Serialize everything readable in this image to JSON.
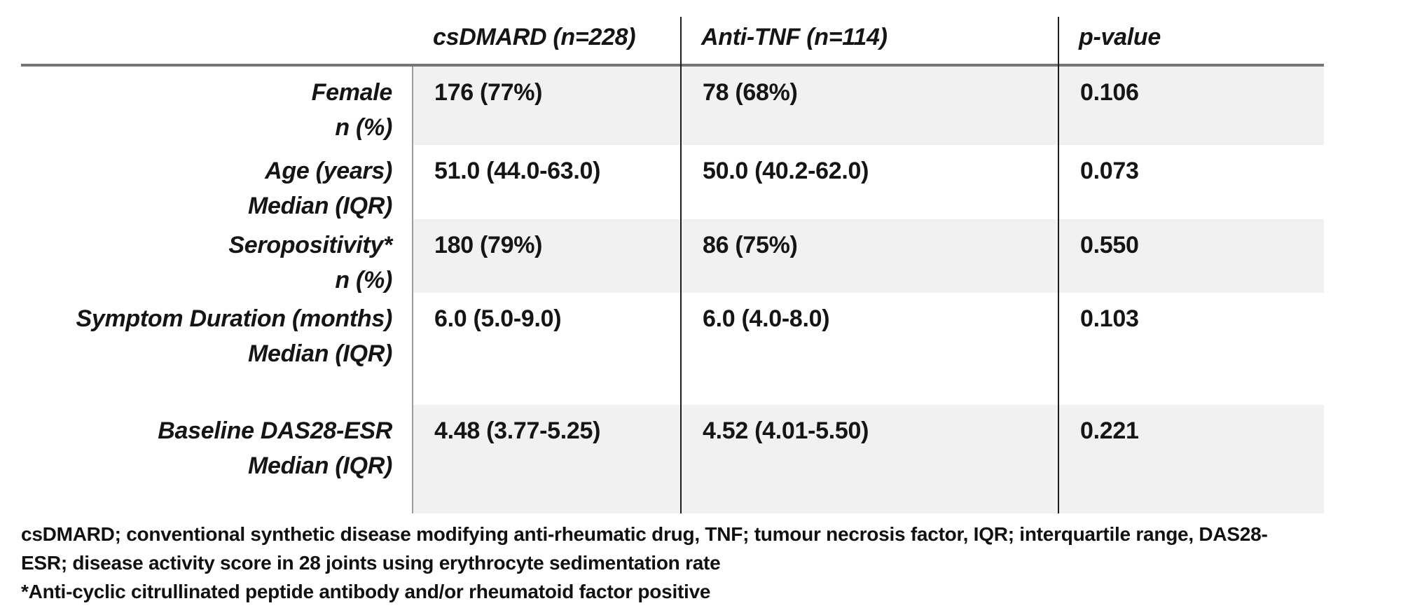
{
  "colors": {
    "row_shade": "#f1f1f1",
    "header_rule": "#757575",
    "divider_light": "#9b9b9b",
    "divider_dark": "#1c1c1c",
    "text": "#151515",
    "background": "#ffffff"
  },
  "chart_data": {
    "type": "table",
    "columns": [
      "",
      "csDMARD  (n=228)",
      "Anti-TNF (n=114)",
      "p-value"
    ],
    "rows": [
      [
        "Female n (%)",
        "176 (77%)",
        "78 (68%)",
        "0.106"
      ],
      [
        "Age (years) Median (IQR)",
        "51.0 (44.0-63.0)",
        "50.0 (40.2-62.0)",
        "0.073"
      ],
      [
        "Seropositivity* n (%)",
        "180 (79%)",
        "86 (75%)",
        "0.550"
      ],
      [
        "Symptom Duration (months) Median (IQR)",
        "6.0 (5.0-9.0)",
        "6.0 (4.0-8.0)",
        "0.103"
      ],
      [
        "Baseline DAS28-ESR Median (IQR)",
        "4.48 (3.77-5.25)",
        "4.52 (4.01-5.50)",
        "0.221"
      ]
    ]
  },
  "table": {
    "header": {
      "col1": "",
      "col2": "csDMARD  (n=228)",
      "col3": "Anti-TNF (n=114)",
      "col4": "p-value"
    },
    "rows": [
      {
        "label1": "Female",
        "label2": "n (%)",
        "csdmard": "176 (77%)",
        "antitnf": "78 (68%)",
        "pvalue": "0.106"
      },
      {
        "label1": "Age (years)",
        "label2": "Median (IQR)",
        "csdmard": "51.0 (44.0-63.0)",
        "antitnf": "50.0 (40.2-62.0)",
        "pvalue": "0.073"
      },
      {
        "label1": "Seropositivity*",
        "label2": "n (%)",
        "csdmard": "180 (79%)",
        "antitnf": "86 (75%)",
        "pvalue": "0.550"
      },
      {
        "label1": "Symptom Duration (months)",
        "label2": "Median (IQR)",
        "csdmard": "6.0 (5.0-9.0)",
        "antitnf": "6.0 (4.0-8.0)",
        "pvalue": "0.103"
      },
      {
        "label1": "Baseline DAS28-ESR",
        "label2": "Median (IQR)",
        "csdmard": "4.48 (3.77-5.25)",
        "antitnf": "4.52 (4.01-5.50)",
        "pvalue": "0.221"
      }
    ]
  },
  "footnotes": {
    "line1": "csDMARD; conventional synthetic disease modifying anti-rheumatic drug, TNF; tumour necrosis factor, IQR; interquartile range, DAS28-",
    "line2": "ESR; disease activity score in 28 joints using erythrocyte sedimentation rate",
    "line3": "*Anti-cyclic citrullinated peptide antibody and/or rheumatoid factor positive"
  }
}
